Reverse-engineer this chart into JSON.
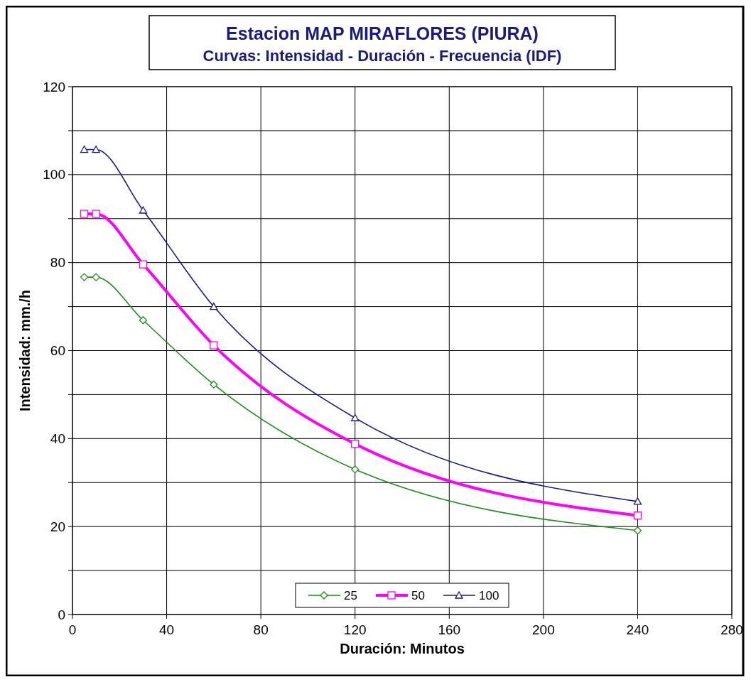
{
  "chart_data": {
    "type": "line",
    "title": "Estacion MAP MIRAFLORES (PIURA)",
    "subtitle": "Curvas: Intensidad - Duración - Frecuencia (IDF)",
    "xlabel": "Duración: Minutos",
    "ylabel": "Intensidad: mm./h",
    "x": [
      5,
      10,
      30,
      60,
      120,
      240
    ],
    "series": [
      {
        "name": "25",
        "color": "#228b22",
        "marker": "diamond",
        "values": [
          76.7,
          76.7,
          66.9,
          52.3,
          33.0,
          19.1
        ]
      },
      {
        "name": "50",
        "color": "#ff00ff",
        "marker": "square",
        "values": [
          91.1,
          91.1,
          79.6,
          61.2,
          38.8,
          22.5
        ]
      },
      {
        "name": "100",
        "color": "#1a1a80",
        "marker": "triangle",
        "values": [
          105.7,
          105.7,
          91.9,
          70.0,
          44.7,
          25.7
        ]
      }
    ],
    "xlim": [
      0,
      280
    ],
    "xticks": [
      0,
      40,
      80,
      120,
      160,
      200,
      240,
      280
    ],
    "ylim": [
      0,
      120
    ],
    "yticks": [
      0,
      {
        "value": 10,
        "label": null
      },
      20,
      {
        "value": 30,
        "label": null
      },
      40,
      {
        "value": 50,
        "label": null
      },
      60,
      {
        "value": 70,
        "label": null
      },
      80,
      {
        "value": 90,
        "label": null
      },
      100,
      {
        "value": 110,
        "label": null
      },
      120
    ],
    "grid": true,
    "legend": "bottom"
  }
}
